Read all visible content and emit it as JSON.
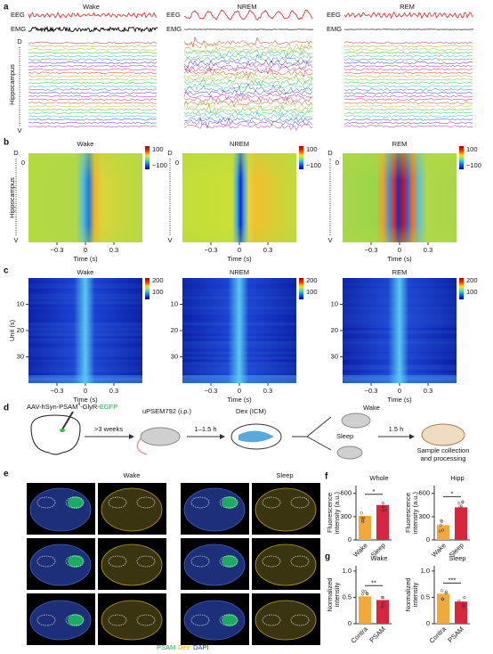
{
  "panel_a": {
    "label": "a",
    "columns": [
      "Wake",
      "NREM",
      "REM"
    ],
    "eeg": "EEG",
    "emg": "EMG",
    "y_label": "Hippocampus",
    "top": "D",
    "bottom": "V"
  },
  "panel_b": {
    "label": "b",
    "columns": [
      "Wake",
      "NREM",
      "REM"
    ],
    "y_label": "Hippocampus",
    "top": "D",
    "bottom": "V",
    "yticks": [
      0
    ],
    "xlim": [
      -0.6,
      0.6
    ],
    "xticks": [
      {
        "value": -0.3,
        "label": "−0.3"
      },
      0,
      0.3
    ],
    "x_label": "Time (s)",
    "colorbar_ticks": [
      100,
      {
        "value": -100,
        "label": "−100"
      }
    ]
  },
  "panel_c": {
    "label": "c",
    "columns": [
      "Wake",
      "NREM",
      "REM"
    ],
    "y_label": "Unit (s)",
    "ylim": [
      0,
      40
    ],
    "yticks": [
      10,
      20,
      30
    ],
    "xlim": [
      -0.6,
      0.6
    ],
    "xticks": [
      {
        "value": -0.3,
        "label": "−0.3"
      },
      0,
      0.3
    ],
    "x_label": "Time (s)",
    "colorbar_ticks": [
      200,
      100
    ]
  },
  "panel_d": {
    "label": "d",
    "virus": "AAV-hSyn-PSAM",
    "virus_sup": "4",
    "virus_rest": "-GlyR-",
    "virus_egfp": "EGFP",
    "wait": ">3 weeks",
    "drug": "uPSEM792 (i.p.)",
    "delay": "1–1.5 h",
    "dex": "Dex (ICM)",
    "wake": "Wake",
    "sleep": "Sleep",
    "delay2": "1.5 h",
    "output": [
      "Sample collection",
      "and processing"
    ]
  },
  "panel_e": {
    "label": "e",
    "conditions": [
      "Wake",
      "Sleep"
    ],
    "legend": [
      "PSAM",
      "Dex",
      "DAPI"
    ]
  },
  "panel_f": {
    "label": "f",
    "y_label": [
      "Fluorescence",
      "intensity (a.u.)"
    ],
    "charts": [
      {
        "title": "Whole",
        "categories": [
          "Wake",
          "Sleep"
        ],
        "values": [
          310,
          450
        ],
        "colors": [
          "#f2a93b",
          "#d7263d"
        ],
        "ylim": [
          0,
          700
        ],
        "yticks": [
          0,
          300,
          600
        ],
        "significance": "*"
      },
      {
        "title": "Hipp",
        "categories": [
          "Wake",
          "Sleep"
        ],
        "values": [
          190,
          420
        ],
        "colors": [
          "#f2a93b",
          "#d7263d"
        ],
        "ylim": [
          0,
          700
        ],
        "yticks": [
          0,
          300,
          600
        ],
        "significance": "*"
      }
    ]
  },
  "panel_g": {
    "label": "g",
    "y_label": [
      "Normalized",
      "intensity"
    ],
    "charts": [
      {
        "title": "Wake",
        "categories": [
          "Contra",
          "PSAM"
        ],
        "values": [
          0.52,
          0.45
        ],
        "colors": [
          "#f2a93b",
          "#d7263d"
        ],
        "ylim": [
          0,
          1.1
        ],
        "yticks": [
          0,
          0.5,
          {
            "value": 1,
            "label": "1.0"
          }
        ],
        "significance": "**"
      },
      {
        "title": "Sleep",
        "categories": [
          "Contra",
          "PSAM"
        ],
        "values": [
          0.57,
          0.42
        ],
        "colors": [
          "#f2a93b",
          "#d7263d"
        ],
        "ylim": [
          0,
          1.1
        ],
        "yticks": [
          0,
          0.5,
          {
            "value": 1,
            "label": "1.0"
          }
        ],
        "significance": "***"
      }
    ]
  }
}
